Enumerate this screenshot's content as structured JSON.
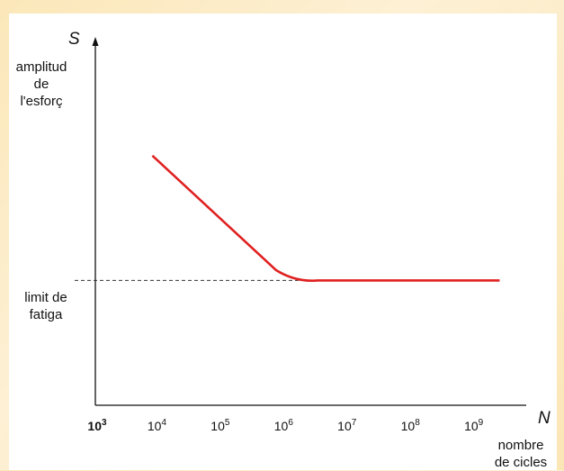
{
  "chart_data": {
    "type": "line",
    "x_scale": "log10",
    "y_scale": "schematic",
    "x_axis_symbol": "N",
    "x_axis_label": [
      "nombre",
      "de cicles"
    ],
    "y_axis_symbol": "S",
    "y_axis_label": [
      "amplitud",
      "de",
      "l'esforç"
    ],
    "threshold_label": [
      "limit de",
      "fatiga"
    ],
    "x_ticks": [
      {
        "base": "10",
        "exp": "3"
      },
      {
        "base": "10",
        "exp": "4"
      },
      {
        "base": "10",
        "exp": "5"
      },
      {
        "base": "10",
        "exp": "6"
      },
      {
        "base": "10",
        "exp": "7"
      },
      {
        "base": "10",
        "exp": "8"
      },
      {
        "base": "10",
        "exp": "9"
      }
    ],
    "xlim_log10": [
      3,
      9.8
    ],
    "ylim_relative": [
      0,
      1
    ],
    "fatigue_limit_relative": 0.36,
    "series": [
      {
        "color": "#e02020",
        "points_log10N_S": [
          [
            3.9,
            0.72
          ],
          [
            5.85,
            0.39
          ],
          [
            6.5,
            0.36
          ],
          [
            9.38,
            0.36
          ]
        ]
      }
    ],
    "threshold_line": {
      "style": "dashed",
      "color": "#333333"
    },
    "grid": false
  }
}
